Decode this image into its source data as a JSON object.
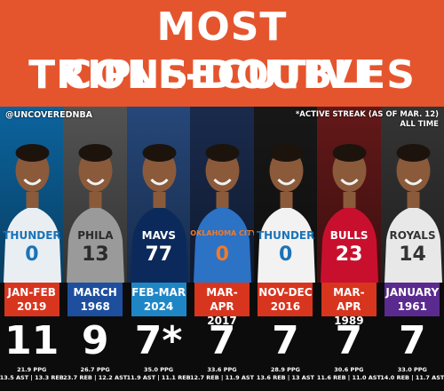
{
  "title": {
    "line1": "MOST CONSECUTIVE",
    "line2": "TRIPLE-DOUBLES"
  },
  "handle": "@UNCOVEREDNBA",
  "note": {
    "line1": "*ACTIVE STREAK (AS OF MAR. 12)",
    "line2": "ALL TIME"
  },
  "colors": {
    "header": "#e5552d",
    "label_red": "#d8351f",
    "label_blue": "#1d4f9e",
    "label_light_blue": "#1f86c6",
    "label_purple": "#5a2a8f"
  },
  "streaks": [
    {
      "period_line1": "JAN-FEB",
      "period_line2": "2019",
      "count": "11",
      "stat1": "21.9 PPG",
      "stat2": "13.5 AST | 13.3 REB",
      "color": "#d8351f",
      "jersey": "THUNDER",
      "number": "0",
      "jersey_color": "#e9eef3",
      "text_color": "#1a73b8",
      "photo_bg": "#0d6fb0"
    },
    {
      "period_line1": "MARCH",
      "period_line2": "1968",
      "count": "9",
      "stat1": "26.7 PPG",
      "stat2": "23.7 REB | 12.2 AST",
      "color": "#1d4f9e",
      "jersey": "PHILA",
      "number": "13",
      "jersey_color": "#9a9a9a",
      "text_color": "#2b2b2b",
      "photo_bg": "#5c5c5c"
    },
    {
      "period_line1": "FEB-MAR",
      "period_line2": "2024",
      "count": "7*",
      "stat1": "35.0 PPG",
      "stat2": "11.9 AST | 11.1 REB",
      "color": "#1f86c6",
      "jersey": "MAVS",
      "number": "77",
      "jersey_color": "#0b2a5b",
      "text_color": "#ffffff",
      "photo_bg": "#2a4f87"
    },
    {
      "period_line1": "MAR-APR",
      "period_line2": "2017",
      "count": "7",
      "stat1": "33.6 PPG",
      "stat2": "12.7 REB | 11.9 AST",
      "color": "#d8351f",
      "jersey": "OKLAHOMA CITY",
      "number": "0",
      "jersey_color": "#2c72c5",
      "text_color": "#f07a2b",
      "photo_bg": "#1c2f55"
    },
    {
      "period_line1": "NOV-DEC",
      "period_line2": "2016",
      "count": "7",
      "stat1": "28.9 PPG",
      "stat2": "13.6 REB | 13 AST",
      "color": "#d8351f",
      "jersey": "THUNDER",
      "number": "0",
      "jersey_color": "#f2f2f2",
      "text_color": "#1a73b8",
      "photo_bg": "#1a1a1a"
    },
    {
      "period_line1": "MAR-APR",
      "period_line2": "1989",
      "count": "7",
      "stat1": "30.6 PPG",
      "stat2": "11.6 REB | 11.0 AST",
      "color": "#d8351f",
      "jersey": "BULLS",
      "number": "23",
      "jersey_color": "#c8102e",
      "text_color": "#ffffff",
      "photo_bg": "#6e1b1b"
    },
    {
      "period_line1": "JANUARY",
      "period_line2": "1961",
      "count": "7",
      "stat1": "33.0 PPG",
      "stat2": "14.0 REB | 11.7 AST",
      "color": "#5a2a8f",
      "jersey": "ROYALS",
      "number": "14",
      "jersey_color": "#e8e8e8",
      "text_color": "#333333",
      "photo_bg": "#3a3a3a"
    }
  ]
}
